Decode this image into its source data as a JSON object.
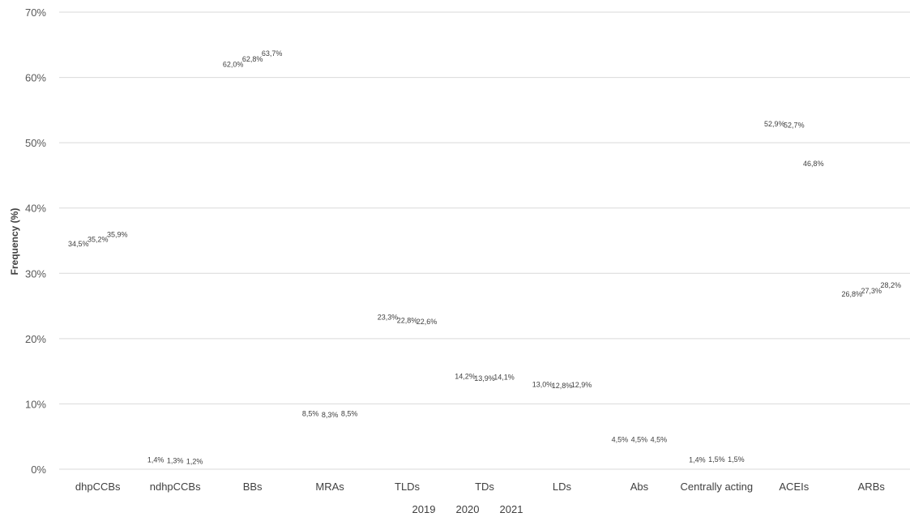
{
  "chart_data": {
    "type": "line",
    "title": "",
    "xlabel": "",
    "ylabel": "Frequency (%)",
    "ylim": [
      0,
      70
    ],
    "yticks": [
      "0%",
      "10%",
      "20%",
      "30%",
      "40%",
      "50%",
      "60%",
      "70%"
    ],
    "grid": true,
    "legend_position": "bottom",
    "categories": [
      "dhpCCBs",
      "ndhpCCBs",
      "BBs",
      "MRAs",
      "TLDs",
      "TDs",
      "LDs",
      "Abs",
      "Centrally acting",
      "ACEIs",
      "ARBs"
    ],
    "series": [
      {
        "name": "2019",
        "values": [
          34.5,
          1.4,
          62.0,
          8.5,
          23.3,
          14.2,
          13.0,
          4.5,
          1.4,
          52.9,
          26.8
        ],
        "labels": [
          "34,5%",
          "1,4%",
          "62,0%",
          "8,5%",
          "23,3%",
          "14,2%",
          "13,0%",
          "4,5%",
          "1,4%",
          "52,9%",
          "26,8%"
        ]
      },
      {
        "name": "2020",
        "values": [
          35.2,
          1.3,
          62.8,
          8.3,
          22.8,
          13.9,
          12.8,
          4.5,
          1.5,
          52.7,
          27.3
        ],
        "labels": [
          "35,2%",
          "1,3%",
          "62,8%",
          "8,3%",
          "22,8%",
          "13,9%",
          "12,8%",
          "4,5%",
          "1,5%",
          "52,7%",
          "27,3%"
        ]
      },
      {
        "name": "2021",
        "values": [
          35.9,
          1.2,
          63.7,
          8.5,
          22.6,
          14.1,
          12.9,
          4.5,
          1.5,
          46.8,
          28.2
        ],
        "labels": [
          "35,9%",
          "1,2%",
          "63,7%",
          "8,5%",
          "22,6%",
          "14,1%",
          "12,9%",
          "4,5%",
          "1,5%",
          "46,8%",
          "28,2%"
        ]
      }
    ]
  }
}
